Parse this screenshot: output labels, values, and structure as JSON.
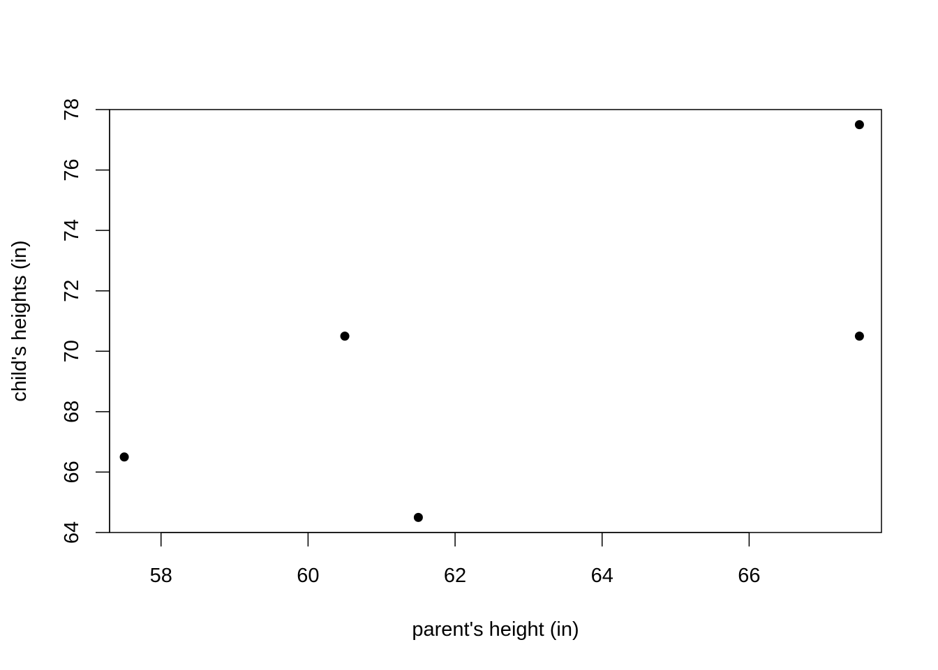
{
  "chart_data": {
    "type": "scatter",
    "title": "",
    "xlabel": "parent's height (in)",
    "ylabel": "child's heights (in)",
    "xlim": [
      57.3,
      67.8
    ],
    "ylim": [
      64,
      78
    ],
    "x_ticks": [
      58,
      60,
      62,
      64,
      66
    ],
    "y_ticks": [
      64,
      66,
      68,
      70,
      72,
      74,
      76,
      78
    ],
    "grid": false,
    "legend": "none",
    "point_color": "#000000",
    "series": [
      {
        "points": [
          {
            "x": 57.5,
            "y": 66.5
          },
          {
            "x": 60.5,
            "y": 70.5
          },
          {
            "x": 61.5,
            "y": 64.5
          },
          {
            "x": 67.5,
            "y": 77.5
          },
          {
            "x": 67.5,
            "y": 70.5
          }
        ]
      }
    ]
  }
}
